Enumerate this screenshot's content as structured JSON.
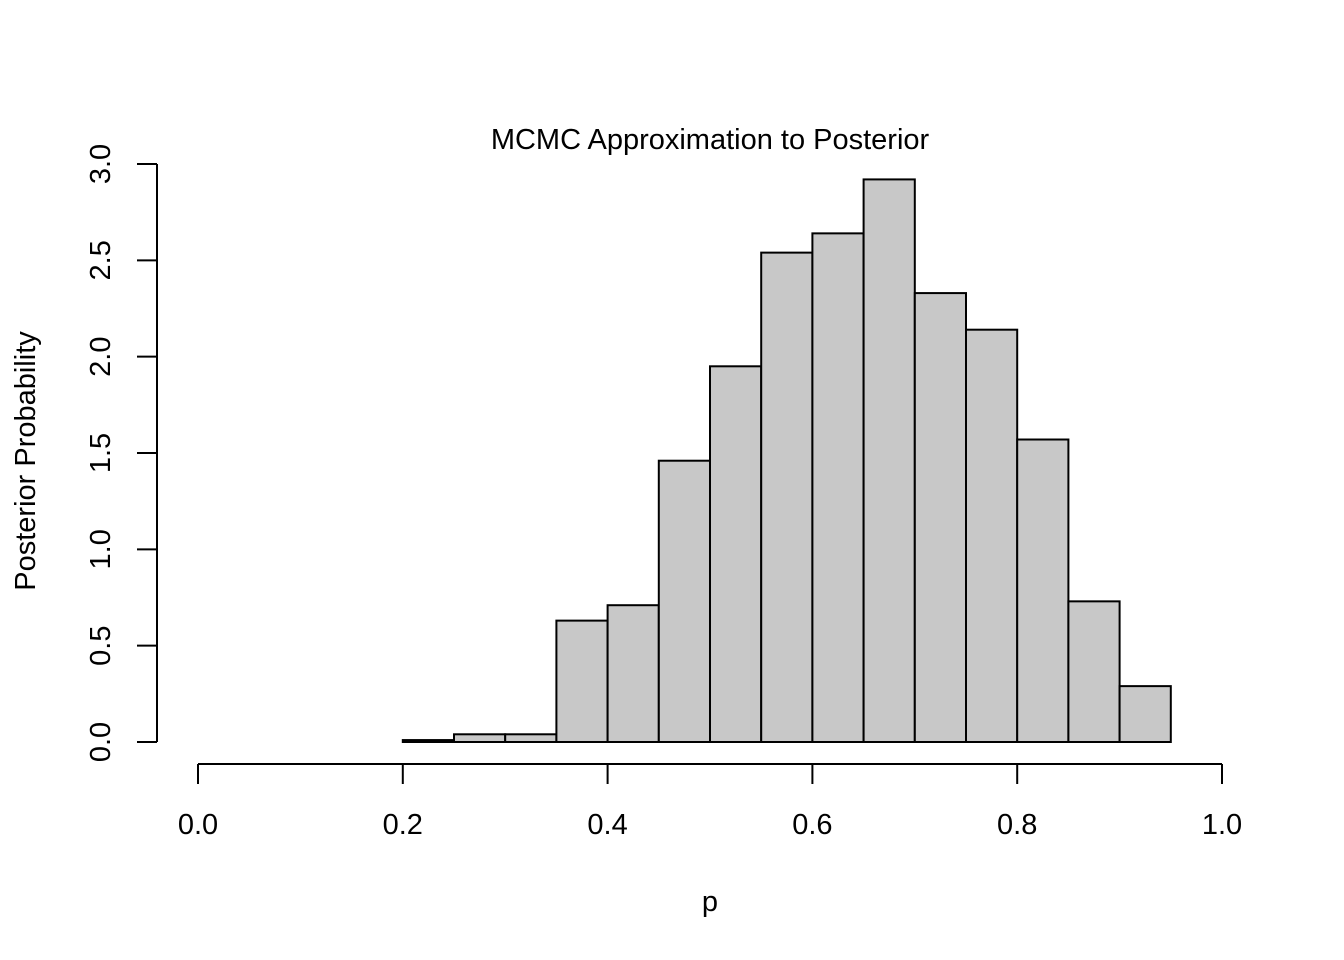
{
  "chart_data": {
    "type": "bar",
    "subtype": "histogram",
    "title": "MCMC Approximation to Posterior",
    "xlabel": "p",
    "ylabel": "Posterior Probability",
    "xlim": [
      0.0,
      1.0
    ],
    "ylim": [
      0.0,
      3.0
    ],
    "x_ticks": [
      "0.0",
      "0.2",
      "0.4",
      "0.6",
      "0.8",
      "1.0"
    ],
    "y_ticks": [
      "0.0",
      "0.5",
      "1.0",
      "1.5",
      "2.0",
      "2.5",
      "3.0"
    ],
    "bin_width": 0.05,
    "bins": [
      {
        "start": 0.2,
        "end": 0.25,
        "density": 0.01
      },
      {
        "start": 0.25,
        "end": 0.3,
        "density": 0.04
      },
      {
        "start": 0.3,
        "end": 0.35,
        "density": 0.04
      },
      {
        "start": 0.35,
        "end": 0.4,
        "density": 0.63
      },
      {
        "start": 0.4,
        "end": 0.45,
        "density": 0.71
      },
      {
        "start": 0.45,
        "end": 0.5,
        "density": 1.46
      },
      {
        "start": 0.5,
        "end": 0.55,
        "density": 1.95
      },
      {
        "start": 0.55,
        "end": 0.6,
        "density": 2.54
      },
      {
        "start": 0.6,
        "end": 0.65,
        "density": 2.64
      },
      {
        "start": 0.65,
        "end": 0.7,
        "density": 2.92
      },
      {
        "start": 0.7,
        "end": 0.75,
        "density": 2.33
      },
      {
        "start": 0.75,
        "end": 0.8,
        "density": 2.14
      },
      {
        "start": 0.8,
        "end": 0.85,
        "density": 1.57
      },
      {
        "start": 0.85,
        "end": 0.9,
        "density": 0.73
      },
      {
        "start": 0.9,
        "end": 0.95,
        "density": 0.29
      }
    ],
    "grid": false,
    "legend": "none",
    "colors": {
      "bar_fill": "#c8c8c8",
      "bar_stroke": "#000000",
      "background": "#ffffff"
    }
  }
}
